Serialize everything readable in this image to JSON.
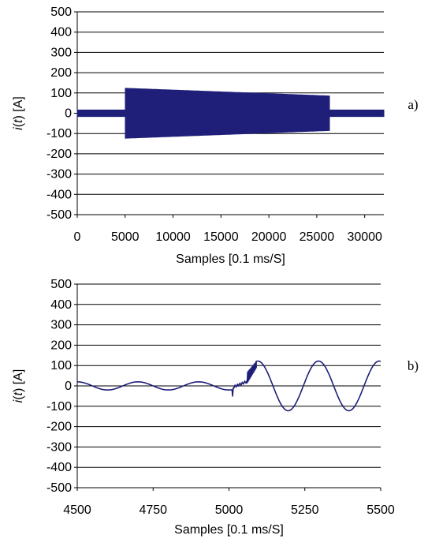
{
  "chart_data": [
    {
      "type": "line",
      "panel_label": "a)",
      "xlabel": "Samples [0.1 ms/S]",
      "ylabel": "i(t) [A]",
      "xlim": [
        0,
        32000
      ],
      "ylim": [
        -500,
        500
      ],
      "xticks": [
        0,
        5000,
        10000,
        15000,
        20000,
        25000,
        30000
      ],
      "yticks": [
        -500,
        -400,
        -300,
        -200,
        -100,
        0,
        100,
        200,
        300,
        400,
        500
      ],
      "grid": "horizontal",
      "color": "#1f1f7a",
      "series": [
        {
          "segments": [
            {
              "x_start": 0,
              "x_end": 5000,
              "amplitude_start": 18,
              "amplitude_end": 18
            },
            {
              "x_start": 5000,
              "x_end": 26300,
              "amplitude_start": 125,
              "amplitude_end": 87
            },
            {
              "x_start": 26300,
              "x_end": 32000,
              "amplitude_start": 18,
              "amplitude_end": 18
            }
          ]
        }
      ]
    },
    {
      "type": "line",
      "panel_label": "b)",
      "xlabel": "Samples [0.1 ms/S]",
      "ylabel": "i(t) [A]",
      "xlim": [
        4500,
        5500
      ],
      "ylim": [
        -500,
        500
      ],
      "xticks": [
        4500,
        4750,
        5000,
        5250,
        5500
      ],
      "yticks": [
        -500,
        -400,
        -300,
        -200,
        -100,
        0,
        100,
        200,
        300,
        400,
        500
      ],
      "grid": "horizontal",
      "color": "#1f1f7a",
      "series": [
        {
          "segments": [
            {
              "x_start": 4500,
              "x_end": 5010,
              "amplitude": 20,
              "period_samples": 200
            },
            {
              "x_start": 5010,
              "x_end": 5060,
              "transient_range": [
                -50,
                20
              ]
            },
            {
              "x_start": 5060,
              "x_end": 5090,
              "transient_range": [
                40,
                120
              ]
            },
            {
              "x_start": 5090,
              "x_end": 5500,
              "amplitude": 122,
              "period_samples": 200
            }
          ]
        }
      ]
    }
  ]
}
